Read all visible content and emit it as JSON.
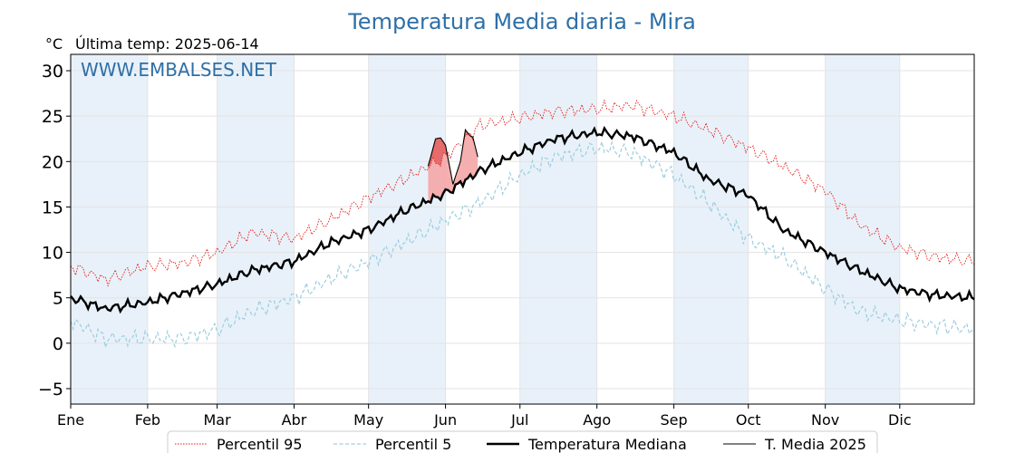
{
  "chart_data": {
    "type": "line",
    "title": "Temperatura Media diaria - Mira",
    "ylabel": "°C",
    "subtitle": "Última temp: 2025-06-14",
    "watermark": "WWW.EMBALSES.NET",
    "ylim": [
      -6.7,
      31.8
    ],
    "yticks": [
      -5,
      0,
      5,
      10,
      15,
      20,
      25,
      30
    ],
    "ytick_labels": [
      "−5",
      "0",
      "5",
      "10",
      "15",
      "20",
      "25",
      "30"
    ],
    "months": [
      "Ene",
      "Feb",
      "Mar",
      "Abr",
      "May",
      "Jun",
      "Jul",
      "Ago",
      "Sep",
      "Oct",
      "Nov",
      "Dic"
    ],
    "month_start_days": [
      1,
      32,
      60,
      91,
      121,
      152,
      182,
      213,
      244,
      274,
      305,
      335
    ],
    "grid": true,
    "legend_position": "bottom-center",
    "colors": {
      "p95": "#e8201d",
      "p5": "#9ccde0",
      "median": "#000000",
      "year": "#000000",
      "fill_above": "#f4a6a6",
      "fill_above_strong": "#e25a5a",
      "band": "#e8f1f9",
      "title": "#2e6fa7",
      "watermark": "#2e6fa7"
    },
    "series": [
      {
        "name": "Percentil 95",
        "style": "dotted",
        "x": [
          1,
          15,
          32,
          46,
          60,
          74,
          91,
          105,
          121,
          135,
          152,
          166,
          182,
          196,
          213,
          227,
          244,
          258,
          274,
          288,
          305,
          319,
          335,
          349,
          365
        ],
        "values": [
          8.5,
          7.0,
          8.5,
          8.8,
          10.0,
          12.2,
          11.5,
          13.5,
          16.0,
          18.0,
          20.5,
          24.0,
          24.8,
          25.5,
          25.8,
          26.2,
          25.0,
          23.5,
          21.5,
          19.5,
          16.8,
          13.0,
          10.5,
          9.5,
          9.0
        ]
      },
      {
        "name": "Percentil 5",
        "style": "dashed",
        "x": [
          1,
          15,
          32,
          46,
          60,
          74,
          91,
          105,
          121,
          135,
          152,
          166,
          182,
          196,
          213,
          227,
          244,
          258,
          274,
          288,
          305,
          319,
          335,
          349,
          365
        ],
        "values": [
          2.5,
          0.5,
          0.5,
          0.5,
          1.5,
          3.5,
          5.0,
          7.0,
          9.0,
          11.0,
          13.5,
          15.5,
          18.5,
          20.5,
          21.5,
          21.0,
          18.5,
          15.5,
          11.5,
          9.5,
          6.0,
          3.5,
          2.5,
          2.0,
          1.5
        ]
      },
      {
        "name": "Temperatura Mediana",
        "style": "solid-thick",
        "x": [
          1,
          15,
          32,
          46,
          60,
          74,
          91,
          105,
          121,
          135,
          152,
          166,
          182,
          196,
          213,
          227,
          244,
          258,
          274,
          288,
          305,
          319,
          335,
          349,
          365
        ],
        "values": [
          5.0,
          3.8,
          4.5,
          5.5,
          6.5,
          8.0,
          9.0,
          11.0,
          12.5,
          14.5,
          16.5,
          19.0,
          21.0,
          22.5,
          23.2,
          22.8,
          21.0,
          18.0,
          16.3,
          12.5,
          10.0,
          8.0,
          6.0,
          5.3,
          5.0
        ]
      },
      {
        "name": "T. Media 2025",
        "style": "solid-thin",
        "x": [
          145,
          148,
          150,
          152,
          155,
          158,
          160,
          162,
          163,
          165
        ],
        "values": [
          19.5,
          22.5,
          22.6,
          21.8,
          17.5,
          20.0,
          23.5,
          22.8,
          22.7,
          20.5
        ]
      }
    ]
  }
}
